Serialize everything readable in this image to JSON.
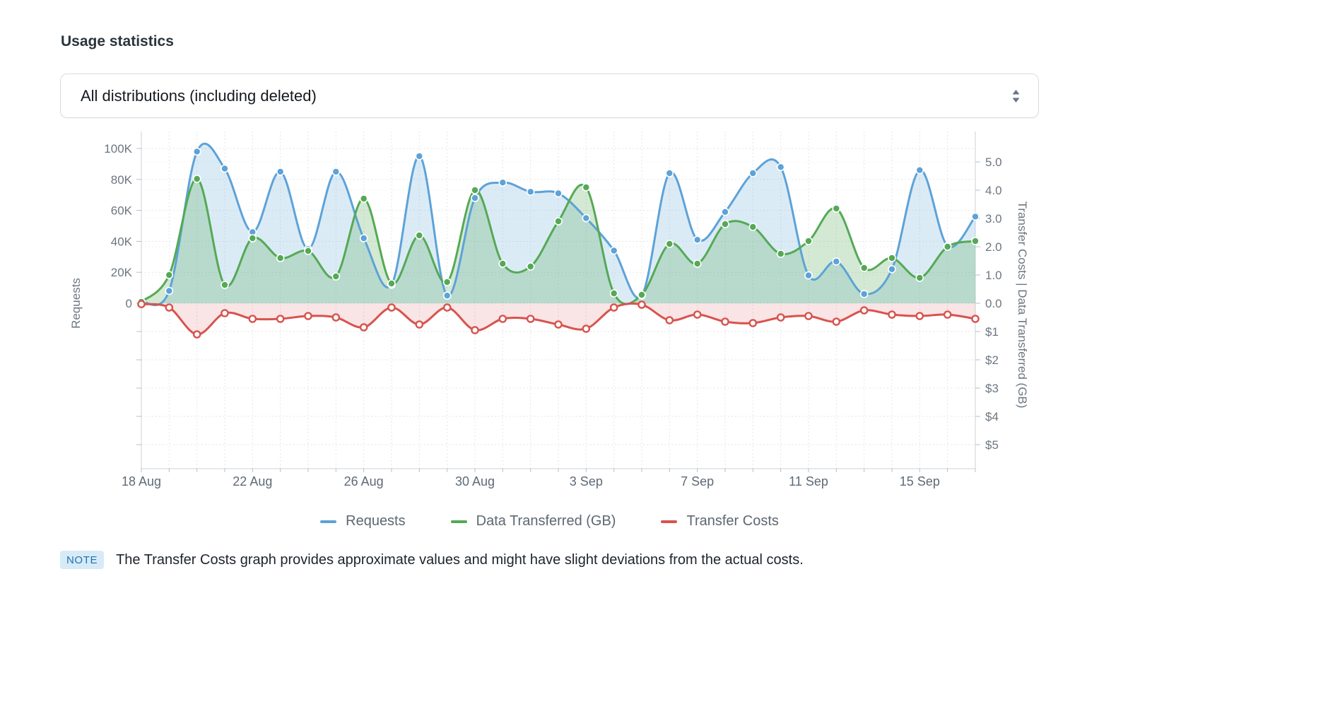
{
  "header": {
    "title": "Usage statistics"
  },
  "filter": {
    "selected_option": "All distributions (including deleted)"
  },
  "chart_data": {
    "type": "line",
    "title": "",
    "categories": [
      "18 Aug",
      "19 Aug",
      "20 Aug",
      "21 Aug",
      "22 Aug",
      "23 Aug",
      "24 Aug",
      "25 Aug",
      "26 Aug",
      "27 Aug",
      "28 Aug",
      "29 Aug",
      "30 Aug",
      "31 Aug",
      "1 Sep",
      "2 Sep",
      "3 Sep",
      "4 Sep",
      "5 Sep",
      "6 Sep",
      "7 Sep",
      "8 Sep",
      "9 Sep",
      "10 Sep",
      "11 Sep",
      "12 Sep",
      "13 Sep",
      "14 Sep",
      "15 Sep",
      "16 Sep",
      "17 Sep"
    ],
    "x_tick_interval": 4,
    "x_tick_labels": [
      "18 Aug",
      "22 Aug",
      "26 Aug",
      "30 Aug",
      "3 Sep",
      "7 Sep",
      "11 Sep",
      "15 Sep"
    ],
    "left_axis": {
      "label": "Requests",
      "ticks": [
        "0",
        "20K",
        "40K",
        "60K",
        "80K",
        "100K"
      ],
      "range_requests": [
        0,
        100000
      ]
    },
    "right_axis": {
      "label": "Transfer Costs | Data Transferred (GB)",
      "gb_ticks": [
        "0.0",
        "1.0",
        "2.0",
        "3.0",
        "4.0",
        "5.0"
      ],
      "gb_range": [
        0,
        5.5
      ],
      "usd_ticks": [
        "$1",
        "$2",
        "$3",
        "$4",
        "$5"
      ],
      "usd_range": [
        0,
        5.5
      ],
      "usd_direction": "down"
    },
    "grid": true,
    "legend_position": "bottom",
    "series": [
      {
        "name": "Requests",
        "axis": "requests",
        "unit": "thousands",
        "color": "#5da2d8",
        "fill_opacity": 0.22,
        "values": [
          1,
          8,
          98,
          87,
          46,
          85,
          35,
          85,
          42,
          12,
          95,
          5,
          68,
          78,
          72,
          71,
          55,
          34,
          5,
          84,
          41,
          59,
          84,
          88,
          18,
          27,
          6,
          22,
          86,
          37,
          56
        ]
      },
      {
        "name": "Data Transferred (GB)",
        "axis": "gb",
        "unit": "GB",
        "color": "#55a955",
        "fill_opacity": 0.26,
        "values": [
          0.05,
          1.0,
          4.4,
          0.65,
          2.3,
          1.6,
          1.85,
          0.95,
          3.7,
          0.7,
          2.4,
          0.75,
          4.0,
          1.4,
          1.3,
          2.9,
          4.1,
          0.35,
          0.3,
          2.1,
          1.4,
          2.8,
          2.7,
          1.75,
          2.2,
          3.35,
          1.25,
          1.6,
          0.9,
          2.0,
          2.2
        ]
      },
      {
        "name": "Transfer Costs",
        "axis": "usd",
        "unit": "USD",
        "color": "#d8534e",
        "fill_opacity": 0.15,
        "values": [
          0.03,
          0.15,
          1.1,
          0.35,
          0.55,
          0.55,
          0.45,
          0.5,
          0.85,
          0.15,
          0.75,
          0.15,
          0.95,
          0.55,
          0.55,
          0.75,
          0.9,
          0.15,
          0.05,
          0.6,
          0.4,
          0.65,
          0.7,
          0.5,
          0.45,
          0.65,
          0.25,
          0.4,
          0.45,
          0.4,
          0.55
        ]
      }
    ]
  },
  "note": {
    "badge": "NOTE",
    "text": "The Transfer Costs graph provides approximate values and might have slight deviations from the actual costs."
  }
}
